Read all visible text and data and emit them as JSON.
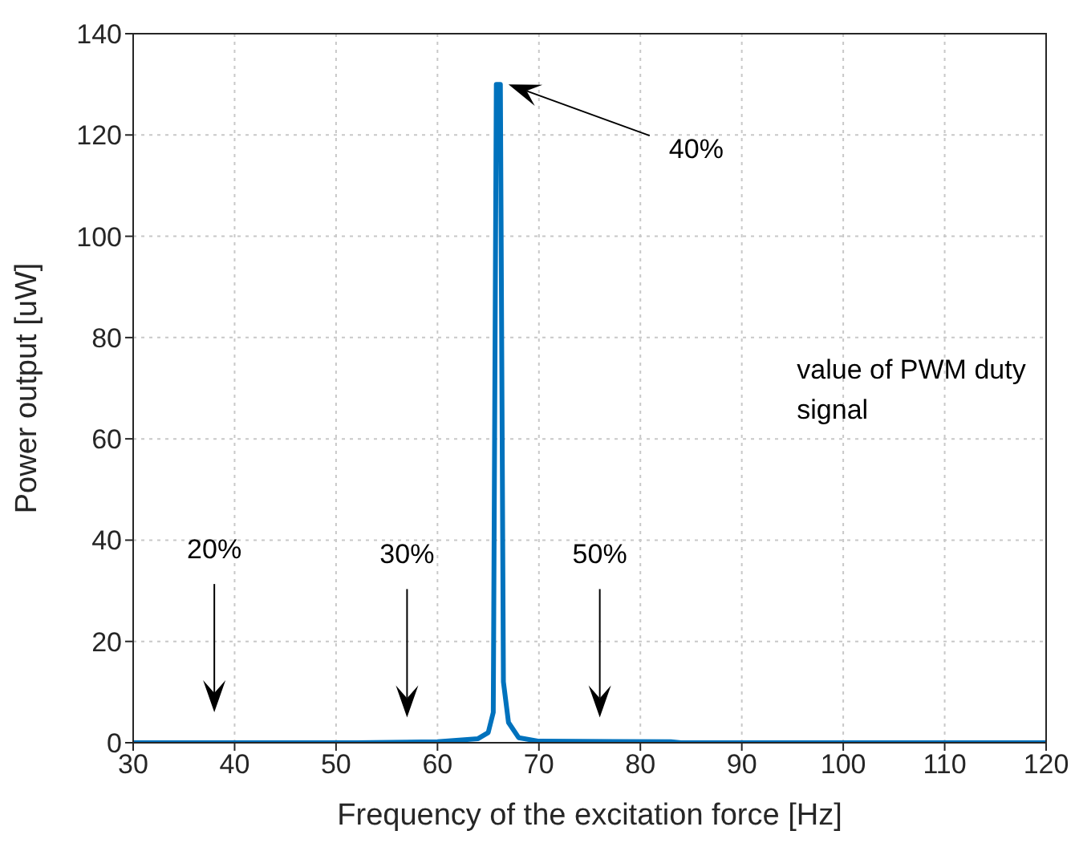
{
  "chart_data": {
    "type": "line",
    "xlabel": "Frequency of the excitation force [Hz]",
    "ylabel": "Power output [uW]",
    "x": [
      30,
      52,
      60,
      64,
      65,
      65.5,
      65.8,
      66.2,
      66.5,
      67,
      68,
      70,
      83,
      84,
      120
    ],
    "series": [
      {
        "color": "#0072bd",
        "values": [
          0,
          0,
          0.2,
          0.8,
          2,
          6,
          130,
          130,
          12,
          4,
          1,
          0.3,
          0.2,
          0,
          0
        ]
      }
    ],
    "xlim": [
      30,
      120
    ],
    "xticks": [
      30,
      40,
      50,
      60,
      70,
      80,
      90,
      100,
      110,
      120
    ],
    "ylim": [
      0,
      140
    ],
    "yticks": [
      0,
      20,
      40,
      60,
      80,
      100,
      120,
      140
    ],
    "grid": true,
    "marker": "none",
    "line_style": "solid",
    "legend": false,
    "annotations": [
      "40%",
      "20%",
      "30%",
      "50%",
      "value of PWM duty signal"
    ]
  }
}
